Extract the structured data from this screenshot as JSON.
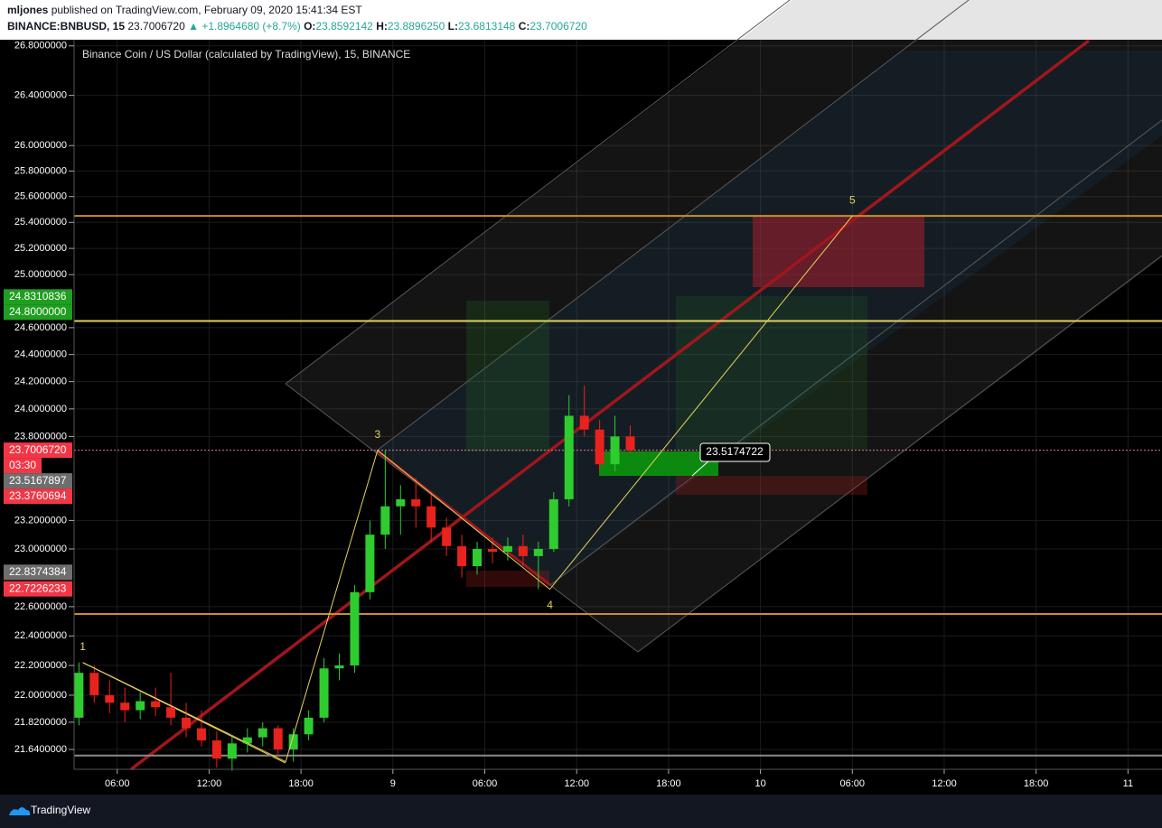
{
  "header": {
    "author": "mljones",
    "published": "published on TradingView.com, February 09, 2020 15:41:34 EST",
    "ticker": "BINANCE:BNBUSD, 15",
    "last": "23.7006720",
    "change": "▲ +1.8964680 (+8.7%)",
    "ohlc": [
      {
        "label": "O:",
        "value": "23.8592142"
      },
      {
        "label": "H:",
        "value": "23.8896250"
      },
      {
        "label": "L:",
        "value": "23.6813148"
      },
      {
        "label": "C:",
        "value": "23.7006720"
      }
    ]
  },
  "footer": {
    "brand": "TradingView"
  },
  "chart_data": {
    "type": "candlestick",
    "title": "Binance Coin / US Dollar (calculated by TradingView), 15, BINANCE",
    "log_scale": true,
    "grid": true,
    "up_color": "#2ecc2e",
    "down_color": "#e8221c",
    "ylim": [
      21.51,
      26.85
    ],
    "yticks": [
      {
        "value": 26.8,
        "label": "26.8000000"
      },
      {
        "value": 26.4,
        "label": "26.4000000"
      },
      {
        "value": 26.0,
        "label": "26.0000000"
      },
      {
        "value": 25.8,
        "label": "25.8000000"
      },
      {
        "value": 25.6,
        "label": "25.6000000"
      },
      {
        "value": 25.4,
        "label": "25.4000000"
      },
      {
        "value": 25.2,
        "label": "25.2000000"
      },
      {
        "value": 25.0,
        "label": "25.0000000"
      },
      {
        "value": 24.6,
        "label": "24.6000000"
      },
      {
        "value": 24.4,
        "label": "24.4000000"
      },
      {
        "value": 24.2,
        "label": "24.2000000"
      },
      {
        "value": 24.0,
        "label": "24.0000000"
      },
      {
        "value": 23.8,
        "label": "23.8000000"
      },
      {
        "value": 23.2,
        "label": "23.2000000"
      },
      {
        "value": 23.0,
        "label": "23.0000000"
      },
      {
        "value": 22.6,
        "label": "22.6000000"
      },
      {
        "value": 22.4,
        "label": "22.4000000"
      },
      {
        "value": 22.2,
        "label": "22.2000000"
      },
      {
        "value": 22.0,
        "label": "22.0000000"
      },
      {
        "value": 21.82,
        "label": "21.8200000"
      },
      {
        "value": 21.64,
        "label": "21.6400000"
      }
    ],
    "xlim": [
      "2020-02-08T03:11",
      "2020-02-11T01:52"
    ],
    "xticks": [
      {
        "value": "2020-02-08T06:00",
        "label": "06:00"
      },
      {
        "value": "2020-02-08T12:00",
        "label": "12:00"
      },
      {
        "value": "2020-02-08T18:00",
        "label": "18:00"
      },
      {
        "value": "2020-02-09T00:00",
        "label": "9"
      },
      {
        "value": "2020-02-09T06:00",
        "label": "06:00"
      },
      {
        "value": "2020-02-09T12:00",
        "label": "12:00"
      },
      {
        "value": "2020-02-09T18:00",
        "label": "18:00"
      },
      {
        "value": "2020-02-10T00:00",
        "label": "10"
      },
      {
        "value": "2020-02-10T06:00",
        "label": "06:00"
      },
      {
        "value": "2020-02-10T12:00",
        "label": "12:00"
      },
      {
        "value": "2020-02-10T18:00",
        "label": "18:00"
      },
      {
        "value": "2020-02-11T00:00",
        "label": "11"
      }
    ],
    "x": [
      "2020-02-08T03:30",
      "2020-02-08T04:30",
      "2020-02-08T05:30",
      "2020-02-08T06:30",
      "2020-02-08T07:30",
      "2020-02-08T08:30",
      "2020-02-08T09:30",
      "2020-02-08T10:30",
      "2020-02-08T11:30",
      "2020-02-08T12:30",
      "2020-02-08T13:30",
      "2020-02-08T14:30",
      "2020-02-08T15:30",
      "2020-02-08T16:30",
      "2020-02-08T17:30",
      "2020-02-08T18:30",
      "2020-02-08T19:30",
      "2020-02-08T20:30",
      "2020-02-08T21:30",
      "2020-02-08T22:30",
      "2020-02-08T23:30",
      "2020-02-09T00:30",
      "2020-02-09T01:30",
      "2020-02-09T02:30",
      "2020-02-09T03:30",
      "2020-02-09T04:30",
      "2020-02-09T05:30",
      "2020-02-09T06:30",
      "2020-02-09T07:30",
      "2020-02-09T08:30",
      "2020-02-09T09:30",
      "2020-02-09T10:30",
      "2020-02-09T11:30",
      "2020-02-09T12:30",
      "2020-02-09T13:30",
      "2020-02-09T14:30",
      "2020-02-09T15:30"
    ],
    "open": [
      21.85,
      22.15,
      22.0,
      21.95,
      21.9,
      21.96,
      21.92,
      21.85,
      21.78,
      21.7,
      21.58,
      21.68,
      21.72,
      21.78,
      21.64,
      21.74,
      21.85,
      22.18,
      22.2,
      22.7,
      23.1,
      23.3,
      23.35,
      23.3,
      23.15,
      23.02,
      22.88,
      23.0,
      22.98,
      23.02,
      22.95,
      23.0,
      23.35,
      23.95,
      23.85,
      23.6,
      23.8
    ],
    "high": [
      22.22,
      22.2,
      22.1,
      22.05,
      22.02,
      22.05,
      22.15,
      21.95,
      21.9,
      21.76,
      21.72,
      21.78,
      21.82,
      21.8,
      21.78,
      21.9,
      22.25,
      22.28,
      22.75,
      23.2,
      23.7,
      23.45,
      23.5,
      23.4,
      23.22,
      23.1,
      23.05,
      23.08,
      23.08,
      23.1,
      23.05,
      23.4,
      24.1,
      24.17,
      23.92,
      23.95,
      23.88
    ],
    "low": [
      21.8,
      21.95,
      21.88,
      21.82,
      21.84,
      21.86,
      21.8,
      21.72,
      21.66,
      21.52,
      21.5,
      21.62,
      21.66,
      21.6,
      21.56,
      21.7,
      21.82,
      22.1,
      22.15,
      22.65,
      23.0,
      23.1,
      23.15,
      23.05,
      22.95,
      22.8,
      22.82,
      22.9,
      22.92,
      22.88,
      22.72,
      22.98,
      23.3,
      23.8,
      23.55,
      23.55,
      23.68
    ],
    "close": [
      22.15,
      22.0,
      21.95,
      21.9,
      21.96,
      21.92,
      21.85,
      21.78,
      21.7,
      21.58,
      21.68,
      21.72,
      21.78,
      21.64,
      21.74,
      21.85,
      22.18,
      22.2,
      22.7,
      23.1,
      23.3,
      23.35,
      23.3,
      23.15,
      23.02,
      22.88,
      23.0,
      22.98,
      23.02,
      22.95,
      23.0,
      23.35,
      23.95,
      23.85,
      23.6,
      23.8,
      23.7
    ],
    "hlines": [
      {
        "value": 25.45,
        "color": "#c8902a"
      },
      {
        "value": 24.65,
        "color": "#e6d25a"
      },
      {
        "value": 22.55,
        "color": "#c8902a"
      },
      {
        "value": 21.6,
        "color": "#8a8a8a"
      },
      {
        "value": 23.700672,
        "color": "#e07a86",
        "dashed": true
      }
    ],
    "wave": {
      "x": [
        "2020-02-08T03:45",
        "2020-02-08T17:00",
        "2020-02-08T23:00",
        "2020-02-09T10:15",
        "2020-02-10T06:00"
      ],
      "y": [
        22.22,
        21.56,
        23.7,
        22.72,
        25.45
      ],
      "labels": [
        "1",
        null,
        "3",
        "4",
        "5"
      ],
      "color": "#e6d25a"
    },
    "price_tags": [
      {
        "value": 24.8310836,
        "label": "24.8310836",
        "color": "#1f9e1f"
      },
      {
        "value": 24.8,
        "label": "24.8000000",
        "color": "#1f9e1f"
      },
      {
        "value": 23.700672,
        "label": "23.7006720",
        "color": "#f23645"
      },
      {
        "value": 23.5167897,
        "label": "23.5167897",
        "color": "#6e6e6e"
      },
      {
        "value": 23.3760694,
        "label": "23.3760694",
        "color": "#f23645"
      },
      {
        "value": 22.8374384,
        "label": "22.8374384",
        "color": "#6e6e6e"
      },
      {
        "value": 22.7226233,
        "label": "22.7226233",
        "color": "#f23645"
      }
    ],
    "countdown": "03:30",
    "callout": {
      "value": 23.5174722,
      "label": "23.5174722"
    }
  }
}
